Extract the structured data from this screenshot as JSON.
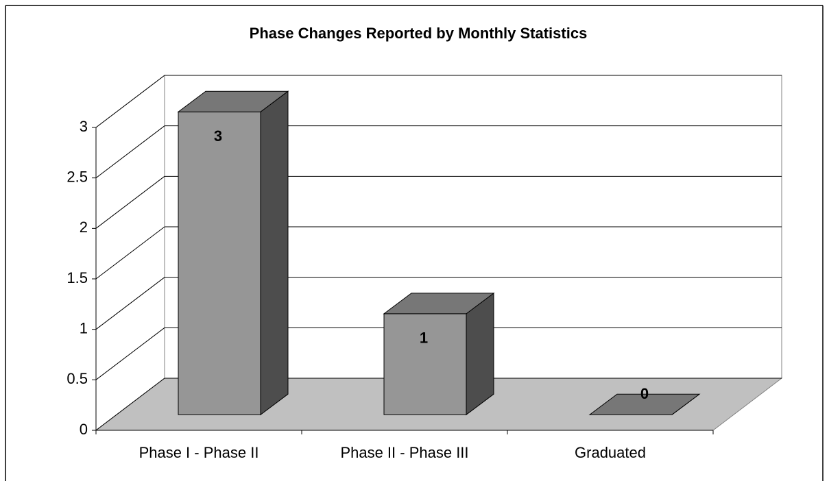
{
  "chart_data": {
    "type": "bar",
    "title": "Phase Changes Reported by Monthly Statistics",
    "categories": [
      "Phase I - Phase II",
      "Phase II - Phase III",
      "Graduated"
    ],
    "values": [
      3,
      1,
      0
    ],
    "color": "#969696",
    "ylim": [
      0,
      3
    ],
    "yticks": [
      0,
      0.5,
      1,
      1.5,
      2,
      2.5,
      3
    ],
    "grid": true
  }
}
